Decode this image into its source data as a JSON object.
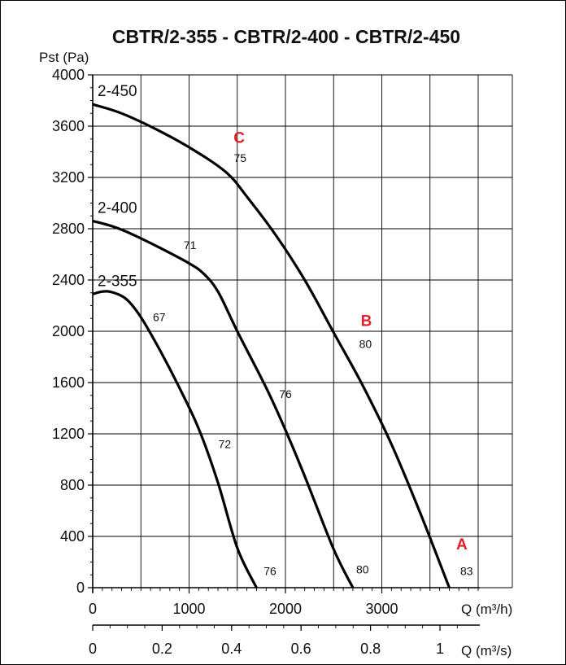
{
  "chart_data": {
    "type": "line",
    "title": "CBTR/2-355 - CBTR/2-400 - CBTR/2-450",
    "ylabel": "Pst (Pa)",
    "xlabel": "Q (m³/h)",
    "xlabel_secondary": "Q (m³/s)",
    "xlim": [
      0,
      4000
    ],
    "ylim": [
      0,
      4000
    ],
    "x_ticks": [
      "0",
      "1000",
      "2000",
      "3000"
    ],
    "x_ticks_values": [
      0,
      1000,
      2000,
      3000
    ],
    "x_ticks_secondary": [
      "0",
      "0.2",
      "0.4",
      "0.6",
      "0.8",
      "1"
    ],
    "x_ticks_secondary_values": [
      0,
      0.2,
      0.4,
      0.6,
      0.8,
      1.0
    ],
    "y_ticks": [
      "0",
      "400",
      "800",
      "1200",
      "1600",
      "2000",
      "2400",
      "2800",
      "3200",
      "3600",
      "4000"
    ],
    "grid": true,
    "series": [
      {
        "name": "2-355",
        "points": [
          [
            0,
            2290
          ],
          [
            100,
            2310
          ],
          [
            200,
            2305
          ],
          [
            350,
            2250
          ],
          [
            500,
            2110
          ],
          [
            700,
            1850
          ],
          [
            900,
            1560
          ],
          [
            1100,
            1240
          ],
          [
            1300,
            820
          ],
          [
            1500,
            310
          ],
          [
            1700,
            0
          ]
        ],
        "efficiency_labels": [
          {
            "text": "67",
            "x": 690,
            "y": 2080
          },
          {
            "text": "72",
            "x": 1370,
            "y": 1090
          },
          {
            "text": "76",
            "x": 1840,
            "y": 100
          }
        ]
      },
      {
        "name": "2-400",
        "points": [
          [
            0,
            2860
          ],
          [
            200,
            2820
          ],
          [
            400,
            2760
          ],
          [
            700,
            2650
          ],
          [
            1000,
            2530
          ],
          [
            1150,
            2450
          ],
          [
            1300,
            2310
          ],
          [
            1500,
            2000
          ],
          [
            1800,
            1560
          ],
          [
            2000,
            1230
          ],
          [
            2200,
            870
          ],
          [
            2500,
            300
          ],
          [
            2700,
            0
          ]
        ],
        "efficiency_labels": [
          {
            "text": "71",
            "x": 1010,
            "y": 2640
          },
          {
            "text": "76",
            "x": 2000,
            "y": 1480
          },
          {
            "text": "80",
            "x": 2800,
            "y": 110
          }
        ]
      },
      {
        "name": "2-450",
        "points": [
          [
            0,
            3770
          ],
          [
            300,
            3700
          ],
          [
            700,
            3560
          ],
          [
            1100,
            3390
          ],
          [
            1400,
            3230
          ],
          [
            1600,
            3050
          ],
          [
            1900,
            2750
          ],
          [
            2200,
            2400
          ],
          [
            2500,
            1990
          ],
          [
            2800,
            1580
          ],
          [
            3100,
            1120
          ],
          [
            3400,
            580
          ],
          [
            3700,
            0
          ]
        ],
        "efficiency_labels": [
          {
            "text": "75",
            "x": 1530,
            "y": 3320
          },
          {
            "text": "80",
            "x": 2830,
            "y": 1870
          },
          {
            "text": "83",
            "x": 3880,
            "y": 100
          }
        ]
      }
    ],
    "points_labels": [
      {
        "text": "C",
        "x": 1520,
        "y": 3470
      },
      {
        "text": "B",
        "x": 2840,
        "y": 2040
      },
      {
        "text": "A",
        "x": 3830,
        "y": 300
      }
    ],
    "colors": {
      "curve": "#000000",
      "grid": "#000000",
      "marker": "#e0202a"
    }
  }
}
